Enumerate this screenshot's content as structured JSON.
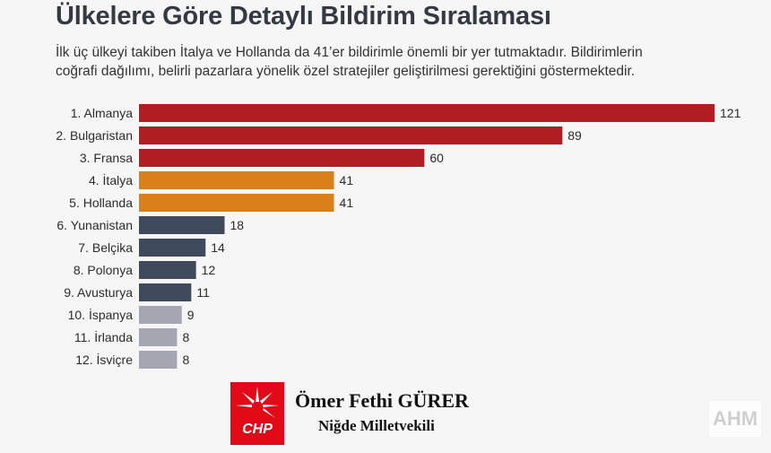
{
  "header": {
    "title": "Ülkelere Göre Detaylı Bildirim Sıralaması",
    "subtitle_line1": "İlk üç ülkeyi takiben İtalya ve Hollanda da 41’er bildirimle önemli bir yer tutmaktadır. Bildirimlerin",
    "subtitle_line2": "coğrafi dağılımı, belirli pazarlara yönelik özel stratejiler geliştirilmesi gerektiğini göstermektedir."
  },
  "chart_data": {
    "type": "bar",
    "orientation": "horizontal",
    "categories": [
      "1. Almanya",
      "2. Bulgaristan",
      "3. Fransa",
      "4. İtalya",
      "5. Hollanda",
      "6. Yunanistan",
      "7. Belçika",
      "8. Polonya",
      "9. Avusturya",
      "10. İspanya",
      "11. İrlanda",
      "12. İsviçre"
    ],
    "values": [
      121,
      89,
      60,
      41,
      41,
      18,
      14,
      12,
      11,
      9,
      8,
      8
    ],
    "bar_colors": [
      "#b01e23",
      "#b01e23",
      "#b01e23",
      "#d9801a",
      "#d9801a",
      "#3f4a5c",
      "#3f4a5c",
      "#3f4a5c",
      "#3f4a5c",
      "#a4a7b2",
      "#a4a7b2",
      "#a4a7b2"
    ],
    "grid": false,
    "xlim": [
      0,
      121
    ]
  },
  "footer": {
    "logo_text": "CHP",
    "name": "Ömer Fethi GÜRER",
    "role": "Niğde Milletvekili"
  },
  "watermark": {
    "text": "AHM"
  },
  "colors": {
    "background": "#f6f6f6",
    "brand_red": "#e30a17"
  }
}
